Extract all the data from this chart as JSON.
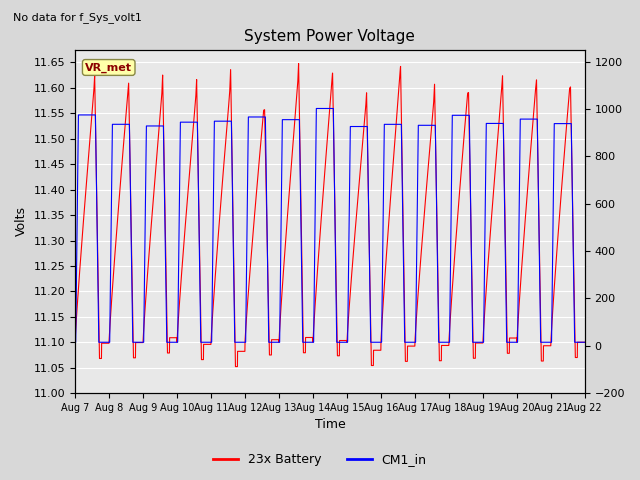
{
  "title": "System Power Voltage",
  "no_data_text": "No data for f_Sys_volt1",
  "xlabel": "Time",
  "ylabel_left": "Volts",
  "ylim_left": [
    11.0,
    11.675
  ],
  "ylim_right": [
    -200,
    1250
  ],
  "yticks_left": [
    11.0,
    11.05,
    11.1,
    11.15,
    11.2,
    11.25,
    11.3,
    11.35,
    11.4,
    11.45,
    11.5,
    11.55,
    11.6,
    11.65
  ],
  "yticks_right": [
    -200,
    0,
    200,
    400,
    600,
    800,
    1000,
    1200
  ],
  "xtick_labels": [
    "Aug 7",
    "Aug 8",
    "Aug 9",
    "Aug 10",
    "Aug 11",
    "Aug 12",
    "Aug 13",
    "Aug 14",
    "Aug 15",
    "Aug 16",
    "Aug 17",
    "Aug 18",
    "Aug 19",
    "Aug 20",
    "Aug 21",
    "Aug 22"
  ],
  "legend_entries": [
    "23x Battery",
    "CM1_in"
  ],
  "legend_colors": [
    "red",
    "blue"
  ],
  "annotation_text": "VR_met",
  "bg_color": "#d8d8d8",
  "plot_bg_color": "#e8e8e8",
  "grid_color": "white",
  "battery_color": "red",
  "cm1_color": "blue"
}
